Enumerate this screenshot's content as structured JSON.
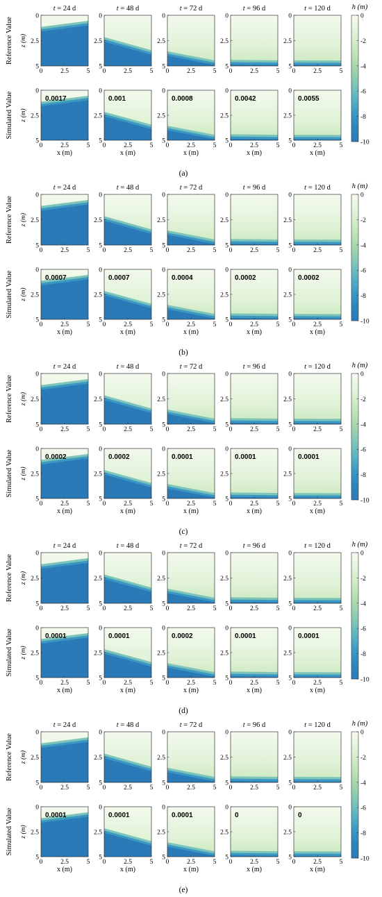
{
  "figure": {
    "time_label_prefix": "t",
    "time_label_suffix": "= {n} d",
    "times_days": [
      "24",
      "48",
      "72",
      "96",
      "120"
    ],
    "row_labels": [
      "Reference Value",
      "Simulated Value"
    ],
    "ylabel": "z (m)",
    "xlabel": "x (m)",
    "colorbar_title": "h (m)",
    "colorbar_ticks": [
      "0",
      "-2",
      "-4",
      "-6",
      "-8",
      "-10"
    ],
    "colormap": [
      "#f4faf0",
      "#e6f4df",
      "#d2ecc9",
      "#b9e1b2",
      "#9dd3ad",
      "#7cc4b9",
      "#58b0c4",
      "#3b98c3",
      "#2b85bd",
      "#2b7ab8"
    ]
  },
  "chart_data": [
    {
      "type": "heatmap",
      "panel_label": "(a)",
      "x_ticks": [
        "0",
        "2.5",
        "5"
      ],
      "y_ticks": [
        "0",
        "2.5",
        "5"
      ],
      "xlim": [
        0,
        5
      ],
      "ylim": [
        5,
        0
      ],
      "colorbar_range": [
        -10,
        0
      ],
      "front_depth_m": {
        "24": {
          "left": 1.6,
          "right": 1.0
        },
        "48": {
          "left": 2.6,
          "right": 3.9
        },
        "72": {
          "left": 4.0,
          "right": 4.9
        },
        "96": {
          "left": 4.85,
          "right": 4.9
        },
        "120": {
          "left": 4.9,
          "right": 4.92
        }
      },
      "simulated_values": [
        "0.0017",
        "0.001",
        "0.0008",
        "0.0042",
        "0.0055"
      ]
    },
    {
      "type": "heatmap",
      "panel_label": "(b)",
      "x_ticks": [
        "0",
        "2.5",
        "5"
      ],
      "y_ticks": [
        "0",
        "2.5",
        "5"
      ],
      "xlim": [
        0,
        5
      ],
      "ylim": [
        5,
        0
      ],
      "colorbar_range": [
        -10,
        0
      ],
      "front_depth_m": {
        "24": {
          "left": 1.6,
          "right": 1.0
        },
        "48": {
          "left": 2.6,
          "right": 3.9
        },
        "72": {
          "left": 4.0,
          "right": 4.9
        },
        "96": {
          "left": 4.85,
          "right": 4.9
        },
        "120": {
          "left": 4.9,
          "right": 4.92
        }
      },
      "simulated_values": [
        "0.0007",
        "0.0007",
        "0.0004",
        "0.0002",
        "0.0002"
      ]
    },
    {
      "type": "heatmap",
      "panel_label": "(c)",
      "x_ticks": [
        "0",
        "2.5",
        "5"
      ],
      "y_ticks": [
        "0",
        "2.5",
        "5"
      ],
      "xlim": [
        0,
        5
      ],
      "ylim": [
        5,
        0
      ],
      "colorbar_range": [
        -10,
        0
      ],
      "front_depth_m": {
        "24": {
          "left": 1.6,
          "right": 1.0
        },
        "48": {
          "left": 2.6,
          "right": 3.9
        },
        "72": {
          "left": 4.0,
          "right": 4.9
        },
        "96": {
          "left": 4.85,
          "right": 4.9
        },
        "120": {
          "left": 4.9,
          "right": 4.92
        }
      },
      "simulated_values": [
        "0.0002",
        "0.0002",
        "0.0001",
        "0.0001",
        "0.0001"
      ]
    },
    {
      "type": "heatmap",
      "panel_label": "(d)",
      "x_ticks": [
        "0",
        "2.5",
        "5"
      ],
      "y_ticks": [
        "0",
        "2.5",
        "5"
      ],
      "xlim": [
        0,
        5
      ],
      "ylim": [
        5,
        0
      ],
      "colorbar_range": [
        -10,
        0
      ],
      "front_depth_m": {
        "24": {
          "left": 1.6,
          "right": 1.0
        },
        "48": {
          "left": 2.6,
          "right": 3.9
        },
        "72": {
          "left": 4.0,
          "right": 4.9
        },
        "96": {
          "left": 4.85,
          "right": 4.9
        },
        "120": {
          "left": 4.9,
          "right": 4.92
        }
      },
      "simulated_values": [
        "0.0001",
        "0.0001",
        "0.0002",
        "0.0001",
        "0.0001"
      ]
    },
    {
      "type": "heatmap",
      "panel_label": "(e)",
      "x_ticks": [
        "0",
        "2.5",
        "5"
      ],
      "y_ticks": [
        "0",
        "2.5",
        "5"
      ],
      "xlim": [
        0,
        5
      ],
      "ylim": [
        5,
        0
      ],
      "colorbar_range": [
        -10,
        0
      ],
      "front_depth_m": {
        "24": {
          "left": 1.6,
          "right": 1.0
        },
        "48": {
          "left": 2.6,
          "right": 3.9
        },
        "72": {
          "left": 4.0,
          "right": 4.9
        },
        "96": {
          "left": 4.85,
          "right": 4.9
        },
        "120": {
          "left": 4.9,
          "right": 4.92
        }
      },
      "simulated_values": [
        "0.0001",
        "0.0001",
        "0.0001",
        "0",
        "0"
      ]
    }
  ]
}
